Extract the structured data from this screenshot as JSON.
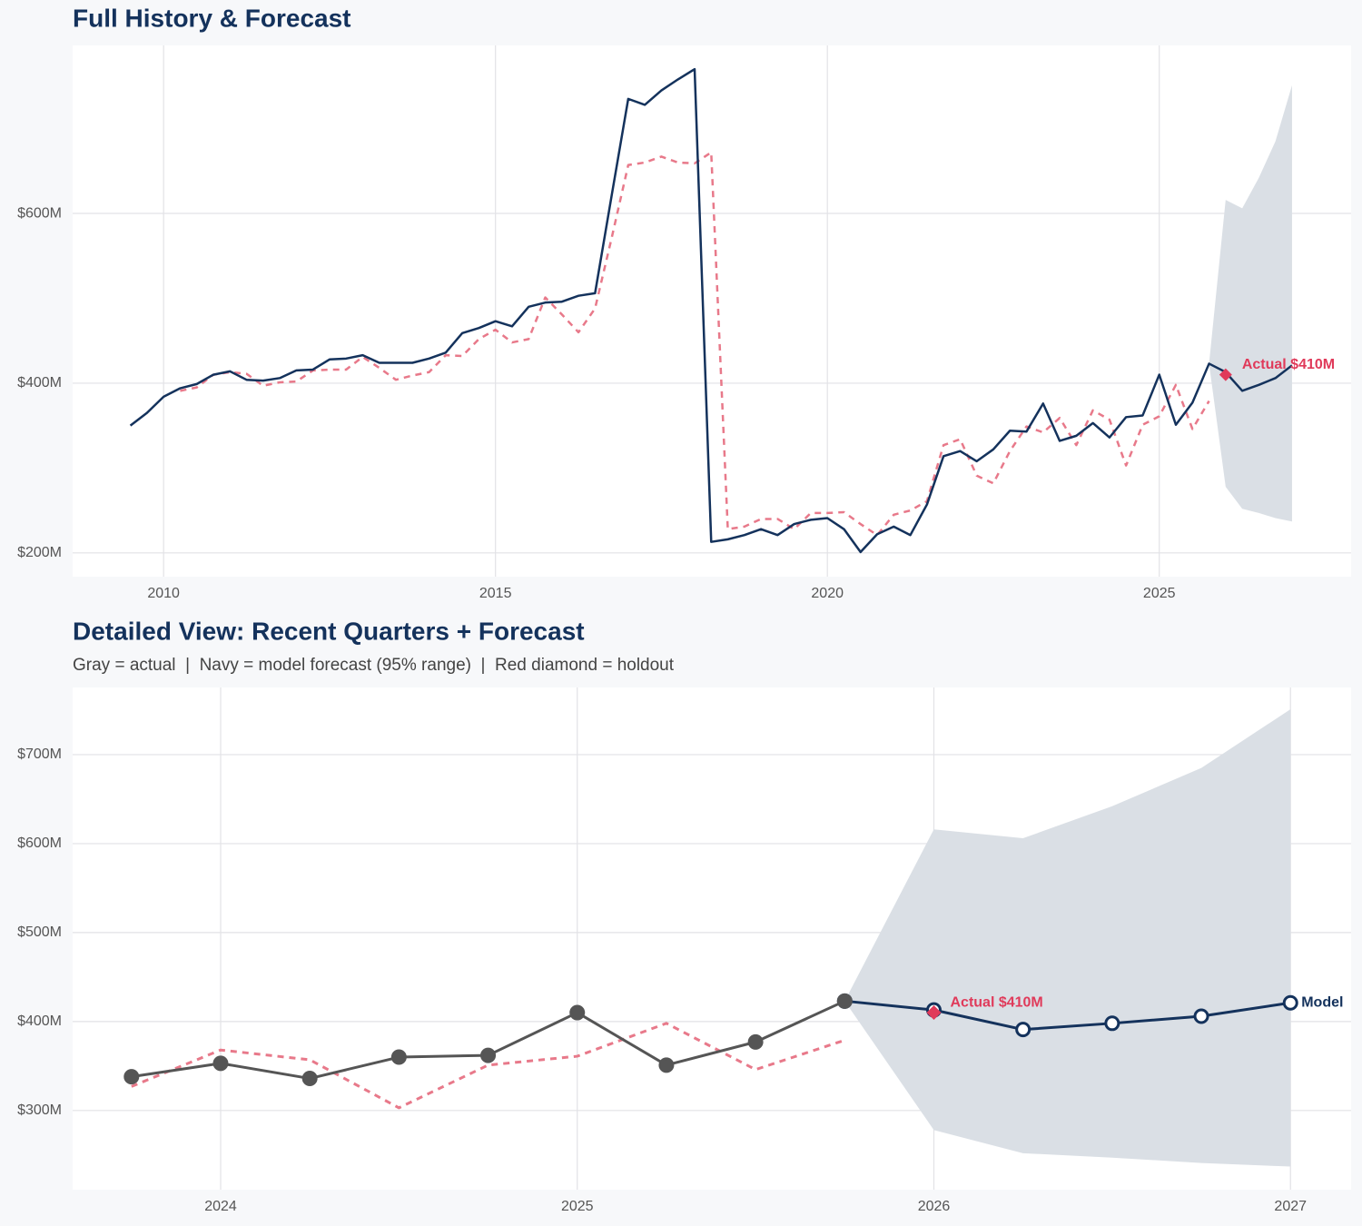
{
  "chart_data": [
    {
      "type": "line",
      "title": "Full History & Forecast",
      "xlim": [
        2008.63,
        2027.89
      ],
      "ylim": [
        172,
        798
      ],
      "xticks": [
        2010,
        2015,
        2020,
        2025
      ],
      "yticks": [
        {
          "value": 200,
          "label": "$200M"
        },
        {
          "value": 400,
          "label": "$400M"
        },
        {
          "value": 600,
          "label": "$600M"
        }
      ],
      "grid": true,
      "band": {
        "color": "#dadfe5",
        "x": [
          2025.75,
          2026,
          2026.25,
          2026.5,
          2026.75,
          2027
        ],
        "lower": [
          423,
          278,
          252,
          247,
          241,
          237
        ],
        "upper": [
          423,
          616,
          606,
          642,
          685,
          751
        ]
      },
      "series": [
        {
          "color": "#e8798a",
          "dashed": true,
          "x": [
            2010.25,
            2010.5,
            2010.75,
            2011,
            2011.25,
            2011.5,
            2011.75,
            2012,
            2012.25,
            2012.5,
            2012.75,
            2013,
            2013.25,
            2013.5,
            2013.75,
            2014,
            2014.25,
            2014.5,
            2014.75,
            2015,
            2015.25,
            2015.5,
            2015.75,
            2016,
            2016.25,
            2016.5,
            2016.75,
            2017,
            2017.25,
            2017.5,
            2017.75,
            2018,
            2018.25,
            2018.5,
            2018.75,
            2019,
            2019.25,
            2019.5,
            2019.75,
            2020,
            2020.25,
            2020.5,
            2020.75,
            2021,
            2021.25,
            2021.5,
            2021.75,
            2022,
            2022.25,
            2022.5,
            2022.75,
            2023,
            2023.25,
            2023.5,
            2023.75,
            2024,
            2024.25,
            2024.5,
            2024.75,
            2025,
            2025.25,
            2025.5,
            2025.75
          ],
          "values": [
            391,
            395,
            410,
            413,
            411,
            397,
            401,
            402,
            415,
            416,
            416,
            431,
            418,
            404,
            409,
            413,
            433,
            432,
            452,
            463,
            448,
            452,
            501,
            481,
            460,
            488,
            571,
            657,
            660,
            667,
            660,
            659,
            672,
            228,
            231,
            240,
            240,
            228,
            247,
            247,
            248,
            234,
            221,
            245,
            250,
            261,
            327,
            334,
            291,
            282,
            320,
            349,
            342,
            359,
            327,
            368,
            357,
            303,
            351,
            361,
            398,
            346,
            379
          ]
        },
        {
          "color": "#14325c",
          "dashed": false,
          "x": [
            2009.5,
            2009.75,
            2010,
            2010.25,
            2010.5,
            2010.75,
            2011,
            2011.25,
            2011.5,
            2011.75,
            2012,
            2012.25,
            2012.5,
            2012.75,
            2013,
            2013.25,
            2013.5,
            2013.75,
            2014,
            2014.25,
            2014.5,
            2014.75,
            2015,
            2015.25,
            2015.5,
            2015.75,
            2016,
            2016.25,
            2016.5,
            2016.75,
            2017,
            2017.25,
            2017.5,
            2017.75,
            2018,
            2018.25,
            2018.5,
            2018.75,
            2019,
            2019.25,
            2019.5,
            2019.75,
            2020,
            2020.25,
            2020.5,
            2020.75,
            2021,
            2021.25,
            2021.5,
            2021.75,
            2022,
            2022.25,
            2022.5,
            2022.75,
            2023,
            2023.25,
            2023.5,
            2023.75,
            2024,
            2024.25,
            2024.5,
            2024.75,
            2025,
            2025.25,
            2025.5,
            2025.75,
            2026,
            2026.25,
            2026.5,
            2026.75,
            2027
          ],
          "values": [
            350,
            365,
            384,
            394,
            399,
            410,
            414,
            404,
            403,
            406,
            415,
            416,
            428,
            429,
            433,
            424,
            424,
            424,
            429,
            436,
            459,
            465,
            473,
            467,
            490,
            495,
            496,
            503,
            506,
            621,
            735,
            728,
            745,
            758,
            770,
            213,
            216,
            221,
            228,
            221,
            234,
            239,
            241,
            228,
            201,
            222,
            231,
            221,
            257,
            314,
            320,
            308,
            322,
            344,
            343,
            376,
            332,
            338,
            353,
            336,
            360,
            362,
            410,
            351,
            377,
            423,
            413,
            391,
            398,
            406,
            421
          ]
        }
      ],
      "holdout": {
        "x": 2026,
        "value": 410,
        "label": "Actual $410M",
        "color": "#e03a5a"
      }
    },
    {
      "type": "line",
      "title": "Detailed View: Recent Quarters + Forecast",
      "subtitle": "Gray = actual  |  Navy = model forecast (95% range)  |  Red diamond = holdout",
      "xlim": [
        2023.585,
        2027.17
      ],
      "ylim": [
        211,
        775.5
      ],
      "xticks": [
        2024,
        2025,
        2026,
        2027
      ],
      "yticks": [
        {
          "value": 300,
          "label": "$300M"
        },
        {
          "value": 400,
          "label": "$400M"
        },
        {
          "value": 500,
          "label": "$500M"
        },
        {
          "value": 600,
          "label": "$600M"
        },
        {
          "value": 700,
          "label": "$700M"
        }
      ],
      "grid": true,
      "band": {
        "color": "#dadfe5",
        "x": [
          2025.75,
          2026,
          2026.25,
          2026.5,
          2026.75,
          2027
        ],
        "lower": [
          423,
          278,
          252,
          247,
          241,
          237
        ],
        "upper": [
          423,
          616,
          606,
          642,
          685,
          751
        ]
      },
      "series": [
        {
          "color": "#e8798a",
          "dashed": true,
          "x": [
            2023.75,
            2024,
            2024.25,
            2024.5,
            2024.75,
            2025,
            2025.25,
            2025.5,
            2025.75
          ],
          "values": [
            327,
            368,
            357,
            303,
            351,
            361,
            398,
            346,
            379
          ]
        },
        {
          "color": "#14325c",
          "dashed": false,
          "markers": "open",
          "end_label": "Model",
          "x": [
            2025.75,
            2026,
            2026.25,
            2026.5,
            2026.75,
            2027
          ],
          "values": [
            423,
            413,
            391,
            398,
            406,
            421
          ]
        },
        {
          "color": "#555555",
          "dashed": false,
          "markers": "filled",
          "x": [
            2023.75,
            2024,
            2024.25,
            2024.5,
            2024.75,
            2025,
            2025.25,
            2025.5,
            2025.75
          ],
          "values": [
            338,
            353,
            336,
            360,
            362,
            410,
            351,
            377,
            423
          ]
        }
      ],
      "holdout": {
        "x": 2026,
        "value": 410,
        "label": "Actual $410M",
        "color": "#e03a5a"
      }
    }
  ]
}
